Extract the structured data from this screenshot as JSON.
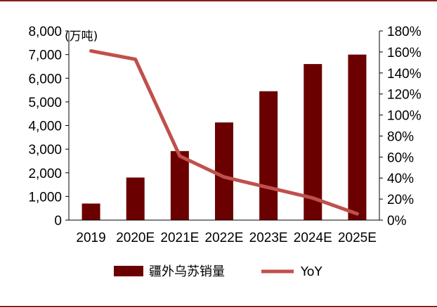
{
  "chart_data": {
    "type": "bar",
    "categories": [
      "2019",
      "2020E",
      "2021E",
      "2022E",
      "2023E",
      "2024E",
      "2025E"
    ],
    "series": [
      {
        "name": "疆外乌苏销量",
        "type": "bar",
        "axis": "left",
        "values": [
          700,
          1800,
          2920,
          4130,
          5450,
          6600,
          7000
        ]
      },
      {
        "name": "YoY",
        "type": "line",
        "axis": "right",
        "values": [
          1.61,
          1.53,
          0.61,
          0.41,
          0.31,
          0.21,
          0.06
        ]
      }
    ],
    "y_left": {
      "min": 0,
      "max": 8000,
      "step": 1000,
      "unit_label": "(万吨)",
      "tick_labels": [
        "0",
        "1,000",
        "2,000",
        "3,000",
        "4,000",
        "5,000",
        "6,000",
        "7,000",
        "8,000"
      ]
    },
    "y_right": {
      "min": 0,
      "max": 1.8,
      "step": 0.2,
      "tick_labels": [
        "0%",
        "20%",
        "40%",
        "60%",
        "80%",
        "100%",
        "120%",
        "140%",
        "160%",
        "180%"
      ]
    },
    "legend_position": "bottom",
    "colors": {
      "bar": "#6B0000",
      "line": "#C0504D",
      "rule": "#8B1A1A"
    }
  }
}
